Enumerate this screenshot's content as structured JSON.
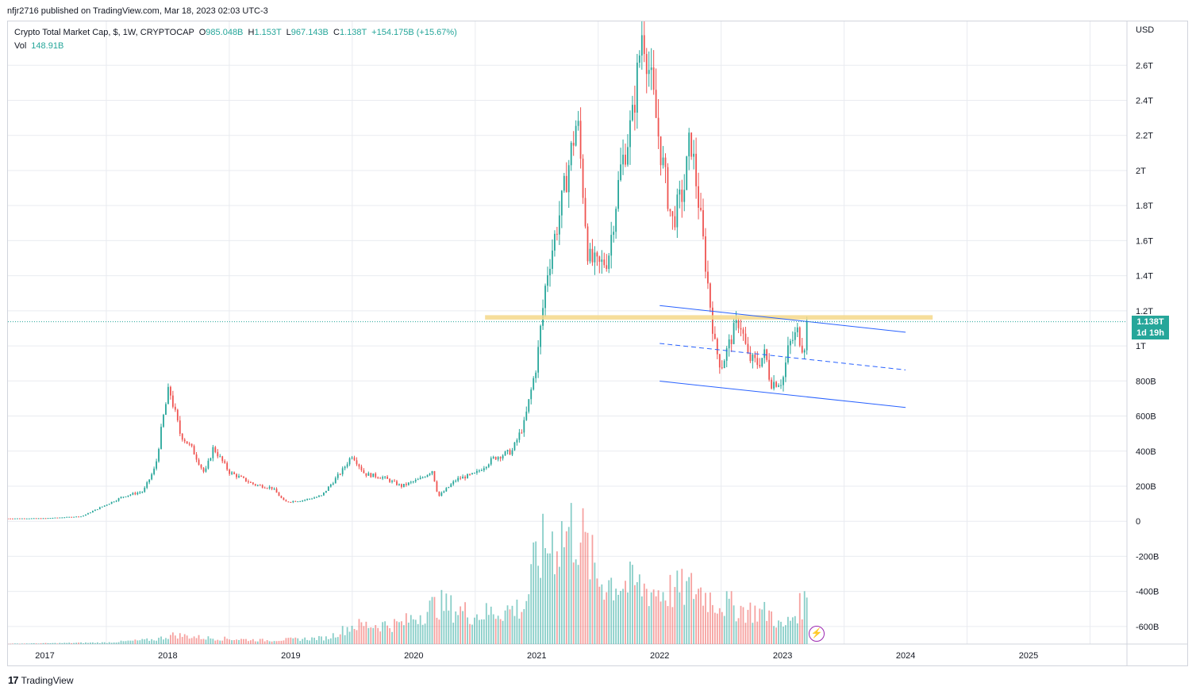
{
  "header": {
    "caption": "nfjr2716 published on TradingView.com, Mar 18, 2023 02:03 UTC-3"
  },
  "legend": {
    "symbol": "Crypto Total Market Cap, $, 1W, CRYPTOCAP",
    "o_key": "O",
    "o_val": "985.048B",
    "h_key": "H",
    "h_val": "1.153T",
    "l_key": "L",
    "l_val": "967.143B",
    "c_key": "C",
    "c_val": "1.138T",
    "change": "+154.175B (+15.67%)",
    "vol_key": "Vol",
    "vol_val": "148.91B"
  },
  "price_tag": {
    "price": "1.138T",
    "countdown": "1d 19h"
  },
  "footer": {
    "brand": "TradingView",
    "logo": "17"
  },
  "colors": {
    "up": "#26a69a",
    "down": "#ef5350",
    "zone": "#f5d88a",
    "channel": "#2962ff",
    "grid": "#e9ebf0",
    "last_price": "#26a69a"
  },
  "chart_data": {
    "type": "candlestick",
    "title": "Crypto Total Market Cap, $, 1W, CRYPTOCAP",
    "currency": "USD",
    "timeframe": "1W",
    "x_tick_labels": [
      "2017",
      "2018",
      "2019",
      "2020",
      "2021",
      "2022",
      "2023",
      "2024",
      "2025"
    ],
    "y_tick_labels": [
      "USD",
      "2.6T",
      "2.4T",
      "2.2T",
      "2T",
      "1.8T",
      "1.6T",
      "1.4T",
      "1.2T",
      "1T",
      "800B",
      "600B",
      "400B",
      "200B",
      "0",
      "-200B",
      "-400B",
      "-600B"
    ],
    "y_ticks_billions": [
      2600,
      2400,
      2200,
      2000,
      1800,
      1600,
      1400,
      1200,
      1000,
      800,
      600,
      400,
      200,
      0,
      -200,
      -400,
      -600
    ],
    "xlim": [
      2016.7,
      2025.8
    ],
    "ylim_billions": [
      -700,
      2850
    ],
    "last_price_billions": 1138,
    "price_anchors": [
      [
        2016.7,
        16
      ],
      [
        2017.0,
        17
      ],
      [
        2017.3,
        28
      ],
      [
        2017.5,
        95
      ],
      [
        2017.65,
        145
      ],
      [
        2017.8,
        170
      ],
      [
        2017.9,
        310
      ],
      [
        2017.96,
        580
      ],
      [
        2018.01,
        760
      ],
      [
        2018.1,
        500
      ],
      [
        2018.2,
        410
      ],
      [
        2018.3,
        270
      ],
      [
        2018.37,
        420
      ],
      [
        2018.5,
        280
      ],
      [
        2018.7,
        210
      ],
      [
        2018.85,
        190
      ],
      [
        2018.95,
        110
      ],
      [
        2019.1,
        120
      ],
      [
        2019.25,
        145
      ],
      [
        2019.42,
        290
      ],
      [
        2019.5,
        380
      ],
      [
        2019.6,
        270
      ],
      [
        2019.75,
        250
      ],
      [
        2019.9,
        200
      ],
      [
        2020.05,
        240
      ],
      [
        2020.15,
        290
      ],
      [
        2020.2,
        140
      ],
      [
        2020.35,
        240
      ],
      [
        2020.5,
        270
      ],
      [
        2020.65,
        360
      ],
      [
        2020.8,
        400
      ],
      [
        2020.9,
        560
      ],
      [
        2021.0,
        900
      ],
      [
        2021.08,
        1400
      ],
      [
        2021.2,
        1800
      ],
      [
        2021.33,
        2300
      ],
      [
        2021.42,
        1500
      ],
      [
        2021.5,
        1450
      ],
      [
        2021.58,
        1500
      ],
      [
        2021.68,
        2000
      ],
      [
        2021.78,
        2300
      ],
      [
        2021.86,
        2820
      ],
      [
        2021.93,
        2500
      ],
      [
        2022.0,
        2150
      ],
      [
        2022.1,
        1700
      ],
      [
        2022.2,
        1900
      ],
      [
        2022.25,
        2200
      ],
      [
        2022.32,
        1800
      ],
      [
        2022.4,
        1300
      ],
      [
        2022.45,
        1000
      ],
      [
        2022.5,
        880
      ],
      [
        2022.6,
        1080
      ],
      [
        2022.65,
        1150
      ],
      [
        2022.72,
        930
      ],
      [
        2022.8,
        900
      ],
      [
        2022.86,
        960
      ],
      [
        2022.9,
        790
      ],
      [
        2023.0,
        800
      ],
      [
        2023.05,
        1000
      ],
      [
        2023.12,
        1080
      ],
      [
        2023.17,
        980
      ],
      [
        2023.21,
        1138
      ]
    ],
    "volume_anchors_billions": [
      [
        2016.7,
        1
      ],
      [
        2017.5,
        5
      ],
      [
        2017.9,
        15
      ],
      [
        2018.05,
        30
      ],
      [
        2018.3,
        20
      ],
      [
        2018.8,
        12
      ],
      [
        2019.3,
        20
      ],
      [
        2019.5,
        60
      ],
      [
        2019.9,
        65
      ],
      [
        2020.2,
        130
      ],
      [
        2020.5,
        95
      ],
      [
        2020.9,
        120
      ],
      [
        2021.0,
        280
      ],
      [
        2021.1,
        330
      ],
      [
        2021.33,
        380
      ],
      [
        2021.5,
        210
      ],
      [
        2021.8,
        190
      ],
      [
        2022.0,
        170
      ],
      [
        2022.3,
        180
      ],
      [
        2022.45,
        140
      ],
      [
        2022.7,
        110
      ],
      [
        2022.9,
        100
      ],
      [
        2023.0,
        50
      ],
      [
        2023.2,
        148.91
      ]
    ],
    "horizontal_zone_billions": {
      "from": 1150,
      "to": 1175,
      "x_start": 2020.58,
      "x_end": 2024.22
    },
    "descending_channel": {
      "upper": [
        [
          2022.0,
          1230
        ],
        [
          2024.0,
          1078
        ]
      ],
      "middle": [
        [
          2022.0,
          1014
        ],
        [
          2024.0,
          863
        ]
      ],
      "lower": [
        [
          2022.0,
          799
        ],
        [
          2024.0,
          649
        ]
      ]
    },
    "grid": true,
    "legend_position": "top-left"
  }
}
